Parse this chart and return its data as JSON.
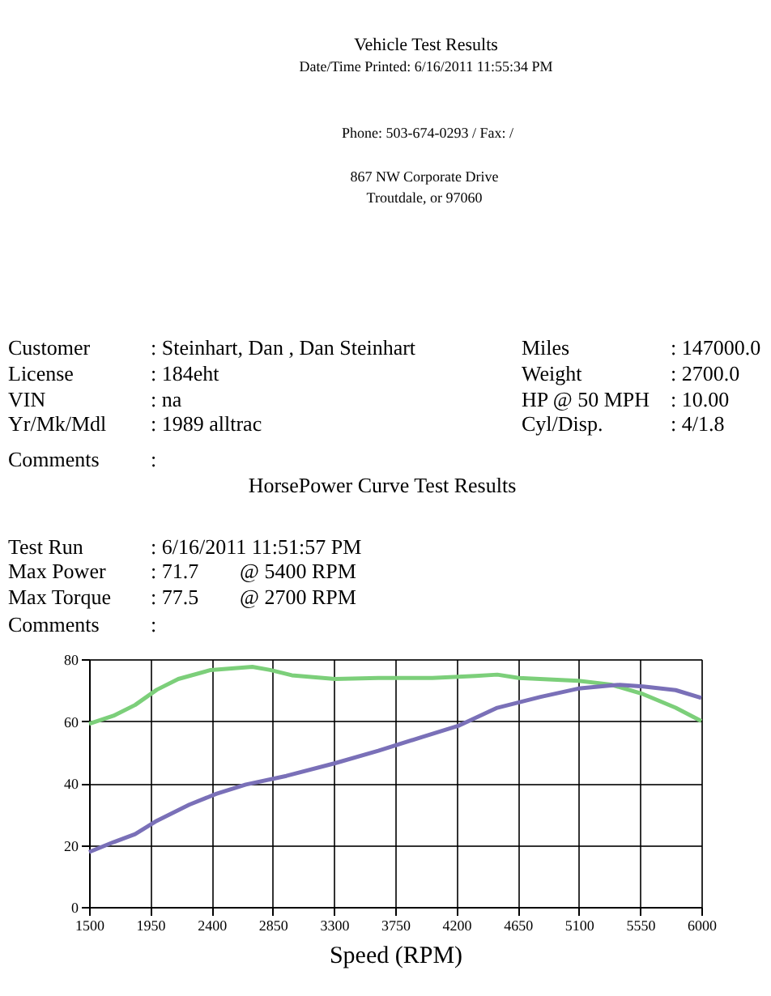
{
  "chart_data": {
    "type": "line",
    "title": "HorsePower Curve Test Results",
    "xlabel": "Speed (RPM)",
    "annotations": [
      "Vehicle Test Results",
      "Date/Time Printed: 6/16/2011 11:55:34 PM",
      "Phone: 503-674-0293 /  Fax: /",
      "867 NW Corporate Drive",
      "Troutdale, or  97060",
      "Customer",
      ": Steinhart, Dan  , Dan Steinhart",
      "Miles",
      ": 147000.0",
      "License",
      ": 184eht",
      "Weight",
      ": 2700.0",
      "VIN",
      ": na",
      "HP @ 50 MPH",
      ": 10.00",
      "Yr/Mk/Mdl",
      ": 1989 alltrac",
      "Cyl/Disp.",
      ": 4/1.8",
      "Comments",
      ":",
      "Test Run",
      ": 6/16/2011 11:51:57 PM",
      "Max Power",
      ": 71.7",
      "@ 5400  RPM",
      "Max Torque",
      ": 77.5",
      "@ 2700  RPM",
      "Comments",
      ":"
    ],
    "series": [
      {
        "color": "#7ccf7a",
        "x": [
          1500,
          1679,
          1838,
          1997,
          2156,
          2394,
          2700,
          2831,
          2990,
          3308,
          3626,
          4023,
          4341,
          4500,
          4658,
          5096,
          5334,
          5572,
          5811,
          6000
        ],
        "values": [
          59.1,
          61.7,
          65.2,
          70.1,
          73.6,
          76.5,
          77.5,
          76.5,
          74.8,
          73.6,
          73.9,
          73.9,
          74.6,
          75,
          73.9,
          73,
          71.8,
          68.7,
          64.3,
          60
        ]
      },
      {
        "color": "#7a70b8",
        "x": [
          1500,
          1679,
          1838,
          1997,
          2236,
          2434,
          2652,
          2950,
          3308,
          3626,
          3944,
          4222,
          4500,
          4818,
          5096,
          5334,
          5400,
          5572,
          5811,
          6000
        ],
        "values": [
          17.7,
          20.9,
          23.5,
          27.8,
          33,
          36.5,
          39.5,
          42.3,
          46.4,
          50.4,
          54.8,
          58.6,
          64.3,
          67.8,
          70.5,
          71.5,
          71.7,
          71.2,
          70,
          67.5
        ]
      }
    ],
    "xlim": [
      1500,
      6000
    ],
    "xticks": [
      1500,
      1950,
      2400,
      2850,
      3300,
      3750,
      4200,
      4650,
      5100,
      5550,
      6000
    ],
    "ylim": [
      0,
      80
    ],
    "yticks": [
      0,
      20,
      40,
      60,
      80
    ],
    "grid": true,
    "marker": "none",
    "line_style": "solid"
  }
}
